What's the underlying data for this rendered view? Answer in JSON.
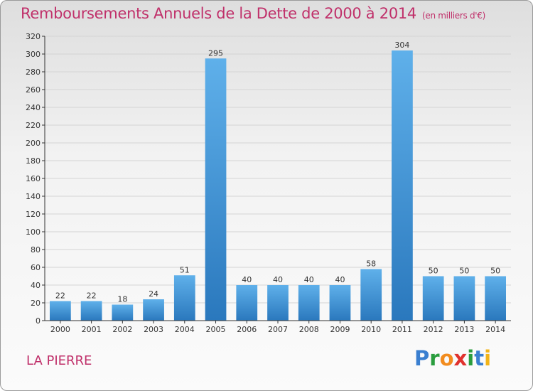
{
  "title": "Remboursements Annuels de la Dette de 2000 à 2014",
  "subtitle": "(en milliers d'€)",
  "commune": "LA PIERRE",
  "logo": {
    "text": "Proxiti",
    "letters": [
      "P",
      "r",
      "o",
      "x",
      "i",
      "t",
      "i"
    ],
    "colors": [
      "#3a7fd0",
      "#2a9d3e",
      "#f28c1e",
      "#e0322e",
      "#2a9d3e",
      "#3a7fd0",
      "#f2b418"
    ]
  },
  "colors": {
    "title": "#c0306a",
    "bar_top": "#5fb0ea",
    "bar_bottom": "#2a78bd",
    "axis": "#333333",
    "grid": "#d4d4d4"
  },
  "chart_data": {
    "type": "bar",
    "title": "Remboursements Annuels de la Dette de 2000 à 2014",
    "xlabel": "",
    "ylabel": "",
    "categories": [
      "2000",
      "2001",
      "2002",
      "2003",
      "2004",
      "2005",
      "2006",
      "2007",
      "2008",
      "2009",
      "2010",
      "2011",
      "2012",
      "2013",
      "2014"
    ],
    "values": [
      22,
      22,
      18,
      24,
      51,
      295,
      40,
      40,
      40,
      40,
      58,
      304,
      50,
      50,
      50
    ],
    "ylim": [
      0,
      320
    ],
    "yticks": [
      0,
      20,
      40,
      60,
      80,
      100,
      120,
      140,
      160,
      180,
      200,
      220,
      240,
      260,
      280,
      300,
      320
    ],
    "grid": true
  }
}
